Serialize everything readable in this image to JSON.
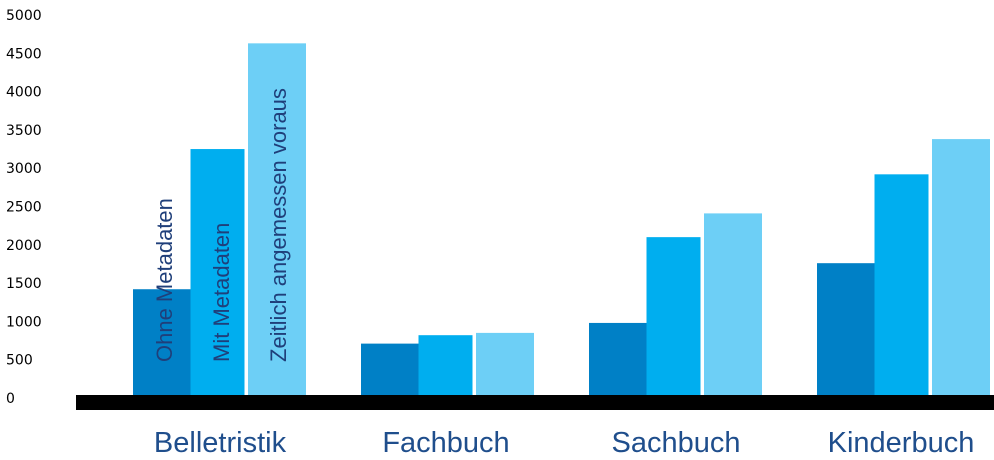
{
  "chart_data": {
    "type": "bar",
    "categories": [
      "Belletristik",
      "Fachbuch",
      "Sachbuch",
      "Kinderbuch"
    ],
    "series": [
      {
        "name": "Ohne Metadaten",
        "color": "#0080c6",
        "values": [
          1420,
          710,
          980,
          1760
        ]
      },
      {
        "name": "Mit Metadaten",
        "color": "#00aeef",
        "values": [
          3250,
          820,
          2100,
          2920
        ]
      },
      {
        "name": "Zeitlich angemessen voraus",
        "color": "#6dcff6",
        "values": [
          4630,
          850,
          2410,
          3380
        ]
      }
    ],
    "yticks": [
      "0",
      "500",
      "1000",
      "1500",
      "2000",
      "2500",
      "3000",
      "3500",
      "4000",
      "4500",
      "5000"
    ],
    "ylim": [
      0,
      5000
    ],
    "grid": false,
    "legend": "series names written vertically inside the first category's bars"
  }
}
